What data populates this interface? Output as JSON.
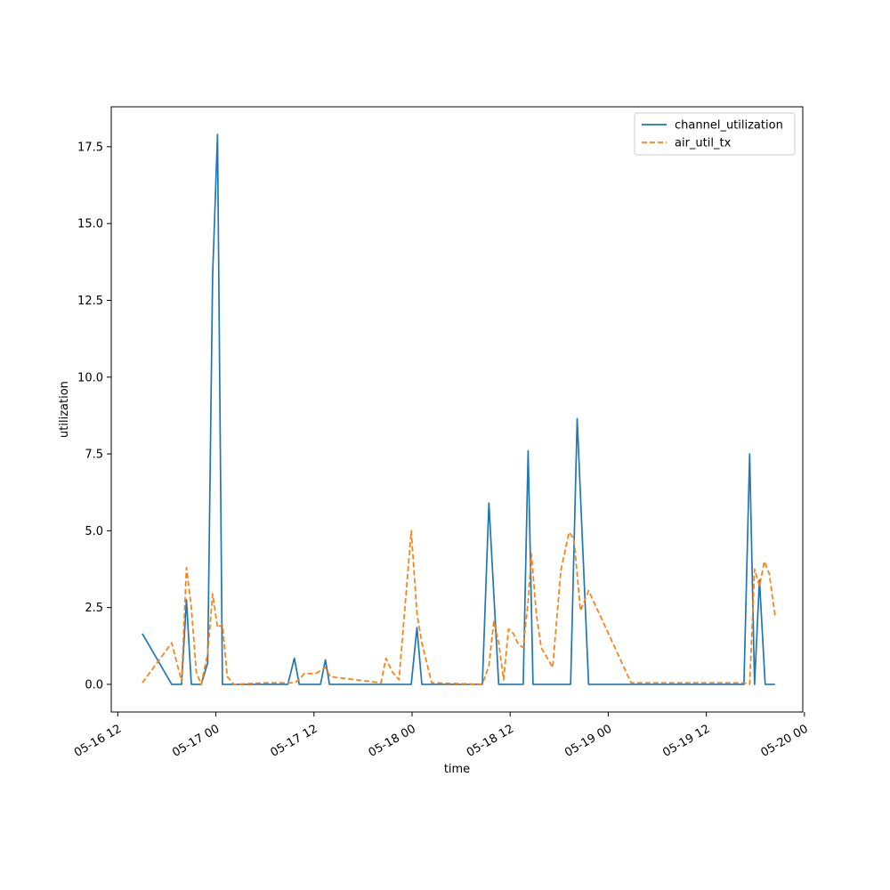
{
  "chart_data": {
    "type": "line",
    "xlabel": "time",
    "ylabel": "utilization",
    "x_tick_labels": [
      "05-16 12",
      "05-17 00",
      "05-17 12",
      "05-18 00",
      "05-18 12",
      "05-19 00",
      "05-19 12",
      "05-20 00"
    ],
    "y_tick_labels": [
      "0.0",
      "2.5",
      "5.0",
      "7.5",
      "10.0",
      "12.5",
      "15.0",
      "17.5"
    ],
    "x_unit": "hours since 05-16 00:00",
    "xlim": [
      11.2,
      95.8
    ],
    "ylim": [
      -0.9,
      18.8
    ],
    "legend_position": "top-right",
    "grid": false,
    "series": [
      {
        "name": "channel_utilization",
        "color": "#1f77b4",
        "style": "solid",
        "points": [
          [
            15.0,
            1.65
          ],
          [
            18.6,
            0.0
          ],
          [
            19.8,
            0.0
          ],
          [
            20.4,
            2.75
          ],
          [
            21.0,
            0.0
          ],
          [
            22.2,
            0.0
          ],
          [
            23.0,
            0.7
          ],
          [
            23.6,
            13.3
          ],
          [
            24.2,
            17.9
          ],
          [
            24.8,
            0.0
          ],
          [
            30.0,
            0.0
          ],
          [
            32.8,
            0.0
          ],
          [
            33.6,
            0.85
          ],
          [
            34.2,
            0.0
          ],
          [
            36.8,
            0.0
          ],
          [
            37.4,
            0.8
          ],
          [
            37.9,
            0.0
          ],
          [
            47.9,
            0.0
          ],
          [
            48.6,
            1.85
          ],
          [
            49.2,
            0.0
          ],
          [
            56.6,
            0.0
          ],
          [
            57.4,
            5.9
          ],
          [
            58.6,
            0.0
          ],
          [
            61.6,
            0.0
          ],
          [
            62.2,
            7.6
          ],
          [
            62.8,
            0.0
          ],
          [
            67.4,
            0.0
          ],
          [
            68.2,
            8.65
          ],
          [
            69.6,
            0.0
          ],
          [
            88.6,
            0.0
          ],
          [
            89.3,
            7.5
          ],
          [
            89.9,
            0.0
          ],
          [
            90.5,
            3.4
          ],
          [
            91.2,
            0.0
          ],
          [
            92.4,
            0.0
          ]
        ]
      },
      {
        "name": "air_util_tx",
        "color": "#ff7f0e",
        "style": "dashed",
        "points": [
          [
            15.0,
            0.05
          ],
          [
            18.6,
            1.35
          ],
          [
            19.8,
            0.1
          ],
          [
            20.4,
            3.8
          ],
          [
            21.0,
            2.5
          ],
          [
            21.6,
            0.4
          ],
          [
            22.2,
            0.0
          ],
          [
            23.0,
            1.0
          ],
          [
            23.6,
            2.95
          ],
          [
            24.2,
            1.85
          ],
          [
            24.8,
            1.95
          ],
          [
            25.4,
            0.25
          ],
          [
            26.2,
            0.0
          ],
          [
            30.0,
            0.05
          ],
          [
            33.6,
            0.05
          ],
          [
            34.2,
            0.15
          ],
          [
            34.8,
            0.35
          ],
          [
            36.2,
            0.35
          ],
          [
            37.4,
            0.55
          ],
          [
            38.0,
            0.25
          ],
          [
            44.2,
            0.05
          ],
          [
            44.8,
            0.85
          ],
          [
            45.6,
            0.4
          ],
          [
            46.4,
            0.15
          ],
          [
            47.9,
            5.0
          ],
          [
            48.6,
            2.3
          ],
          [
            49.2,
            1.35
          ],
          [
            50.4,
            0.05
          ],
          [
            56.6,
            0.0
          ],
          [
            57.4,
            0.6
          ],
          [
            58.0,
            2.05
          ],
          [
            58.6,
            1.35
          ],
          [
            59.2,
            0.15
          ],
          [
            59.8,
            1.8
          ],
          [
            60.4,
            1.65
          ],
          [
            61.0,
            1.3
          ],
          [
            61.6,
            1.2
          ],
          [
            62.2,
            2.7
          ],
          [
            62.6,
            4.25
          ],
          [
            63.2,
            2.3
          ],
          [
            63.8,
            1.2
          ],
          [
            65.2,
            0.55
          ],
          [
            66.2,
            3.7
          ],
          [
            67.2,
            4.95
          ],
          [
            67.8,
            4.75
          ],
          [
            68.6,
            2.4
          ],
          [
            69.6,
            3.05
          ],
          [
            74.8,
            0.05
          ],
          [
            88.6,
            0.05
          ],
          [
            89.3,
            0.0
          ],
          [
            89.9,
            3.75
          ],
          [
            90.5,
            3.2
          ],
          [
            91.1,
            4.0
          ],
          [
            91.7,
            3.6
          ],
          [
            92.4,
            2.25
          ]
        ]
      }
    ]
  }
}
